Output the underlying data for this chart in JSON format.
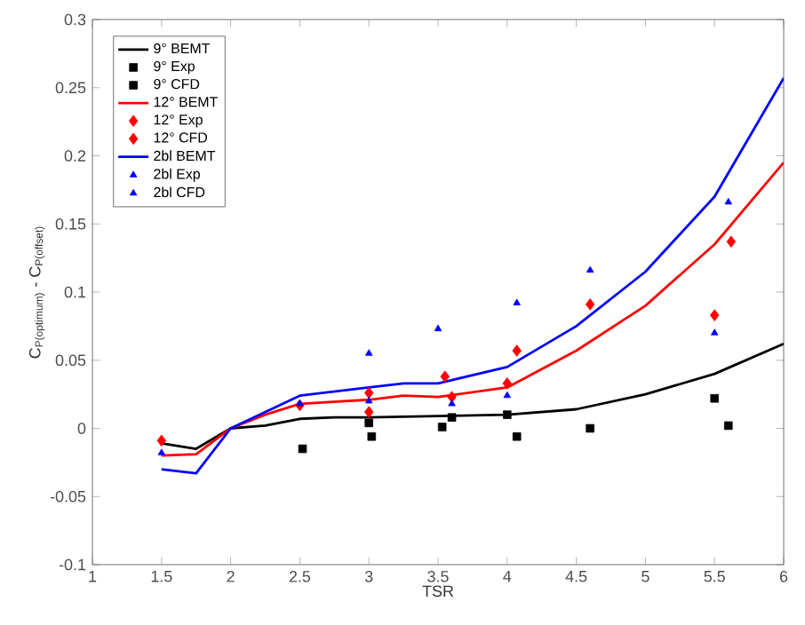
{
  "chart_data": {
    "type": "line",
    "xlabel": "TSR",
    "ylabel": "C$_{P(optimum)}$ - C$_{P(offset)}$",
    "xlim": [
      1,
      6
    ],
    "xticks": [
      1,
      1.5,
      2,
      2.5,
      3,
      3.5,
      4,
      4.5,
      5,
      5.5,
      6
    ],
    "ylim": [
      -0.1,
      0.3
    ],
    "yticks": [
      -0.1,
      -0.05,
      0,
      0.05,
      0.1,
      0.15,
      0.2,
      0.25,
      0.3
    ],
    "grid": false,
    "legend": "top left",
    "series": [
      {
        "name": "9° BEMT",
        "color": "#000000",
        "marker": "none",
        "x": [
          1.5,
          1.75,
          2,
          2.25,
          2.5,
          2.75,
          3,
          3.5,
          4,
          4.5,
          5,
          5.5,
          6
        ],
        "values": [
          -0.011,
          -0.015,
          0,
          0.002,
          0.007,
          0.008,
          0.008,
          0.009,
          0.01,
          0.014,
          0.025,
          0.04,
          0.062
        ]
      },
      {
        "name": "9° Exp",
        "type": "scatter",
        "color": "#000000",
        "marker": "square",
        "x": [
          2.52,
          3.02,
          3.53,
          4.07,
          4.6,
          5.6
        ],
        "values": [
          -0.015,
          -0.006,
          0.001,
          -0.006,
          0,
          0.002
        ]
      },
      {
        "name": "9° CFD",
        "type": "scatter",
        "color": "#000000",
        "marker": "square",
        "x": [
          3,
          3.6,
          4,
          5.5
        ],
        "values": [
          0.004,
          0.008,
          0.01,
          0.022
        ]
      },
      {
        "name": "12° BEMT",
        "color": "#ff0000",
        "marker": "none",
        "x": [
          1.5,
          1.75,
          2,
          2.25,
          2.5,
          3,
          3.25,
          3.5,
          4,
          4.5,
          5,
          5.5,
          6
        ],
        "values": [
          -0.02,
          -0.019,
          0,
          0.01,
          0.018,
          0.021,
          0.024,
          0.023,
          0.03,
          0.057,
          0.09,
          0.135,
          0.195
        ]
      },
      {
        "name": "12° Exp",
        "type": "scatter",
        "color": "#ff0000",
        "marker": "diamond",
        "x": [
          1.5,
          2.5,
          3,
          3.55,
          4.07,
          4.6,
          5.62
        ],
        "values": [
          -0.009,
          0.017,
          0.026,
          0.038,
          0.057,
          0.091,
          0.137
        ]
      },
      {
        "name": "12° CFD",
        "type": "scatter",
        "color": "#ff0000",
        "marker": "diamond",
        "x": [
          3,
          3.6,
          4,
          5.5
        ],
        "values": [
          0.012,
          0.023,
          0.033,
          0.083
        ]
      },
      {
        "name": "2bl BEMT",
        "color": "#0000ff",
        "marker": "none",
        "x": [
          1.5,
          1.75,
          2,
          2.25,
          2.5,
          3,
          3.25,
          3.5,
          4,
          4.5,
          5,
          5.5,
          6
        ],
        "values": [
          -0.03,
          -0.033,
          0,
          0.012,
          0.024,
          0.03,
          0.033,
          0.033,
          0.045,
          0.075,
          0.115,
          0.17,
          0.257
        ]
      },
      {
        "name": "2bl Exp",
        "type": "scatter",
        "color": "#0000ff",
        "marker": "triangle",
        "x": [
          1.5,
          2.5,
          3,
          3.5,
          4.07,
          4.6,
          5.6
        ],
        "values": [
          -0.018,
          0.018,
          0.055,
          0.073,
          0.092,
          0.116,
          0.166
        ]
      },
      {
        "name": "2bl CFD",
        "type": "scatter",
        "color": "#0000ff",
        "marker": "triangle",
        "x": [
          3,
          3.6,
          4,
          5.5
        ],
        "values": [
          0.02,
          0.018,
          0.024,
          0.07
        ]
      }
    ]
  }
}
